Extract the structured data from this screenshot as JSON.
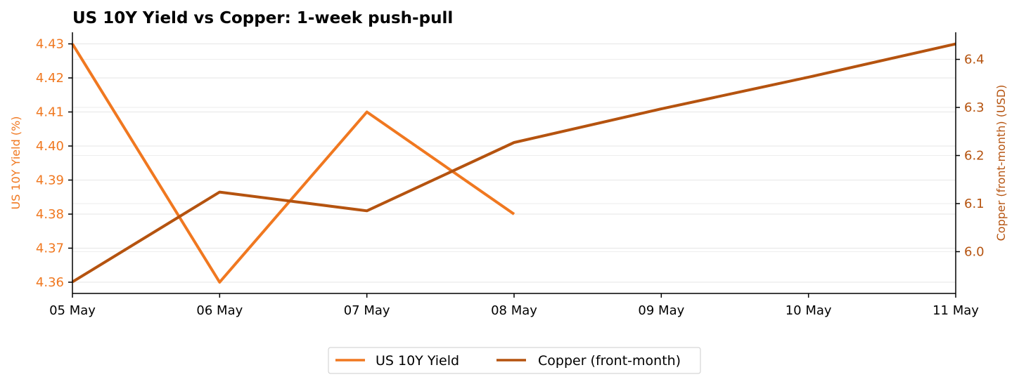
{
  "chart_data": {
    "type": "line",
    "title": "US 10Y Yield vs Copper: 1-week push-pull",
    "x_categories": [
      "05 May",
      "06 May",
      "07 May",
      "08 May",
      "09 May",
      "10 May",
      "11 May"
    ],
    "y_left": {
      "label": "US 10Y Yield (%)",
      "ticks": [
        "4.36",
        "4.37",
        "4.38",
        "4.39",
        "4.40",
        "4.41",
        "4.42",
        "4.43"
      ],
      "range": [
        4.3567,
        4.4334
      ],
      "color": "#f07820"
    },
    "y_right": {
      "label": "Copper (front-month) (USD)",
      "ticks": [
        "6.0",
        "6.1",
        "6.2",
        "6.3",
        "6.4"
      ],
      "range": [
        5.9131,
        6.4563
      ],
      "color": "#b5530f"
    },
    "series": [
      {
        "name": "US 10Y Yield",
        "axis": "left",
        "color": "#f07820",
        "values": [
          4.43,
          4.36,
          4.41,
          4.38,
          null,
          null,
          null
        ]
      },
      {
        "name": "Copper (front-month)",
        "axis": "right",
        "color": "#b5530f",
        "values": [
          5.937,
          6.124,
          6.085,
          6.227,
          6.297,
          6.363,
          6.432
        ]
      }
    ],
    "grid": true,
    "legend_position": "bottom-center"
  }
}
